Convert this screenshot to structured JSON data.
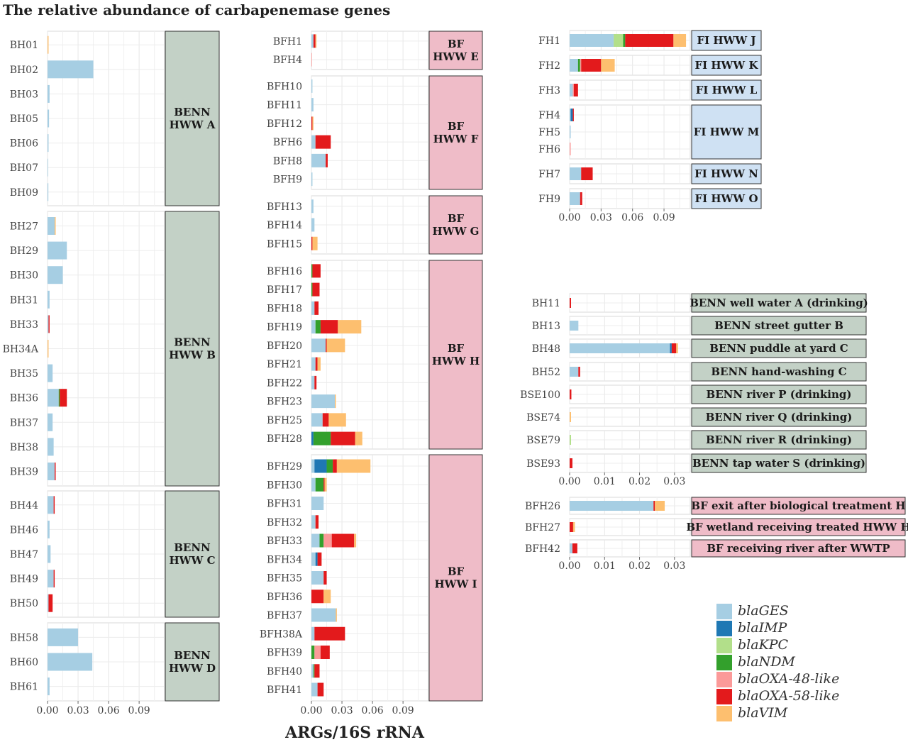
{
  "title": "The relative abundance of carbapenemase genes",
  "x_axis_title": "ARGs/16S rRNA",
  "genes": [
    "blaGES",
    "blaIMP",
    "blaKPC",
    "blaNDM",
    "blaOXA-48-like",
    "blaOXA-58-like",
    "blaVIM"
  ],
  "colors": {
    "blaGES": "#a6cee3",
    "blaIMP": "#1f78b4",
    "blaKPC": "#b2df8a",
    "blaNDM": "#33a02c",
    "blaOXA-48-like": "#fb9a99",
    "blaOXA-58-like": "#e31a1c",
    "blaVIM": "#fdbf6f"
  },
  "facet_colors": {
    "benn": "#c3d1c6",
    "bf": "#efbcc8",
    "fi": "#cfe1f3"
  },
  "legend": {
    "position": "bottom-right",
    "entries": [
      "blaGES",
      "blaIMP",
      "blaKPC",
      "blaNDM",
      "blaOXA-48-like",
      "blaOXA-58-like",
      "blaVIM"
    ]
  },
  "chart_data": [
    {
      "type": "bar",
      "orientation": "horizontal",
      "stacked": true,
      "xlim": [
        0,
        0.115
      ],
      "x_ticks": [
        "0.00",
        "0.03",
        "0.06",
        "0.09"
      ],
      "grid": true,
      "panels": [
        {
          "strip": [
            "BENN",
            "HWW A"
          ],
          "theme": "benn",
          "rows": [
            {
              "label": "BH01",
              "values": {
                "blaVIM": 0.001
              }
            },
            {
              "label": "BH02",
              "values": {
                "blaGES": 0.045
              }
            },
            {
              "label": "BH03",
              "values": {
                "blaGES": 0.002
              }
            },
            {
              "label": "BH05",
              "values": {
                "blaGES": 0.0015
              }
            },
            {
              "label": "BH06",
              "values": {
                "blaGES": 0.001
              }
            },
            {
              "label": "BH07",
              "values": {
                "blaGES": 0.0005
              }
            },
            {
              "label": "BH09",
              "values": {
                "blaGES": 0.0008
              }
            }
          ]
        },
        {
          "strip": [
            "BENN",
            "HWW B"
          ],
          "theme": "benn",
          "rows": [
            {
              "label": "BH27",
              "values": {
                "blaVIM": 0.001,
                "blaGES": 0.007
              }
            },
            {
              "label": "BH29",
              "values": {
                "blaGES": 0.019
              }
            },
            {
              "label": "BH30",
              "values": {
                "blaGES": 0.015
              }
            },
            {
              "label": "BH31",
              "values": {
                "blaGES": 0.002
              }
            },
            {
              "label": "BH33",
              "values": {
                "blaOXA-58-like": 0.001,
                "blaGES": 0.001
              }
            },
            {
              "label": "BH34A",
              "values": {
                "blaVIM": 0.001
              }
            },
            {
              "label": "BH35",
              "values": {
                "blaGES": 0.005
              }
            },
            {
              "label": "BH36",
              "values": {
                "blaOXA-58-like": 0.007,
                "blaNDM": 0.001,
                "blaGES": 0.011
              }
            },
            {
              "label": "BH37",
              "values": {
                "blaGES": 0.005
              }
            },
            {
              "label": "BH38",
              "values": {
                "blaGES": 0.006
              }
            },
            {
              "label": "BH39",
              "values": {
                "blaOXA-58-like": 0.001,
                "blaGES": 0.007
              }
            }
          ]
        },
        {
          "strip": [
            "BENN",
            "HWW C"
          ],
          "theme": "benn",
          "rows": [
            {
              "label": "BH44",
              "values": {
                "blaOXA-58-like": 0.001,
                "blaGES": 0.006
              }
            },
            {
              "label": "BH46",
              "values": {
                "blaGES": 0.002
              }
            },
            {
              "label": "BH47",
              "values": {
                "blaGES": 0.003
              }
            },
            {
              "label": "BH49",
              "values": {
                "blaOXA-58-like": 0.001,
                "blaGES": 0.006
              }
            },
            {
              "label": "BH50",
              "values": {
                "blaOXA-58-like": 0.004,
                "blaGES": 0.001
              }
            }
          ]
        },
        {
          "strip": [
            "BENN",
            "HWW D"
          ],
          "theme": "benn",
          "rows": [
            {
              "label": "BH58",
              "values": {
                "blaGES": 0.03
              }
            },
            {
              "label": "BH60",
              "values": {
                "blaGES": 0.044
              }
            },
            {
              "label": "BH61",
              "values": {
                "blaGES": 0.002
              }
            }
          ]
        }
      ]
    },
    {
      "type": "bar",
      "orientation": "horizontal",
      "stacked": true,
      "xlim": [
        0,
        0.115
      ],
      "x_ticks": [
        "0.00",
        "0.03",
        "0.06",
        "0.09"
      ],
      "grid": true,
      "panels": [
        {
          "strip": [
            "BF",
            "HWW E"
          ],
          "theme": "bf",
          "rows": [
            {
              "label": "BFH1",
              "values": {
                "blaVIM": 0.001,
                "blaOXA-58-like": 0.002,
                "blaGES": 0.002
              }
            },
            {
              "label": "BFH4",
              "values": {
                "blaOXA-48-like": 0.0005
              }
            }
          ]
        },
        {
          "strip": [
            "BF",
            "HWW F"
          ],
          "theme": "bf",
          "rows": [
            {
              "label": "BFH10",
              "values": {
                "blaGES": 0.001
              }
            },
            {
              "label": "BFH11",
              "values": {
                "blaGES": 0.002
              }
            },
            {
              "label": "BFH12",
              "values": {
                "blaVIM": 0.001,
                "blaOXA-58-like": 0.001
              }
            },
            {
              "label": "BFH6",
              "values": {
                "blaOXA-58-like": 0.015,
                "blaGES": 0.004
              }
            },
            {
              "label": "BFH8",
              "values": {
                "blaOXA-58-like": 0.002,
                "blaGES": 0.014
              }
            },
            {
              "label": "BFH9",
              "values": {
                "blaGES": 0.001
              }
            }
          ]
        },
        {
          "strip": [
            "BF",
            "HWW G"
          ],
          "theme": "bf",
          "rows": [
            {
              "label": "BFH13",
              "values": {
                "blaGES": 0.002
              }
            },
            {
              "label": "BFH14",
              "values": {
                "blaGES": 0.003
              }
            },
            {
              "label": "BFH15",
              "values": {
                "blaVIM": 0.005,
                "blaOXA-58-like": 0.001
              }
            }
          ]
        },
        {
          "strip": [
            "BF",
            "HWW H"
          ],
          "theme": "bf",
          "rows": [
            {
              "label": "BFH16",
              "values": {
                "blaOXA-58-like": 0.008,
                "blaNDM": 0.001
              }
            },
            {
              "label": "BFH17",
              "values": {
                "blaOXA-58-like": 0.007,
                "blaNDM": 0.001
              }
            },
            {
              "label": "BFH18",
              "values": {
                "blaOXA-58-like": 0.004,
                "blaGES": 0.003
              }
            },
            {
              "label": "BFH19",
              "values": {
                "blaVIM": 0.023,
                "blaOXA-58-like": 0.017,
                "blaNDM": 0.005,
                "blaGES": 0.004
              }
            },
            {
              "label": "BFH20",
              "values": {
                "blaVIM": 0.018,
                "blaOXA-58-like": 0.001,
                "blaGES": 0.014
              }
            },
            {
              "label": "BFH21",
              "values": {
                "blaVIM": 0.003,
                "blaOXA-58-like": 0.002,
                "blaGES": 0.004
              }
            },
            {
              "label": "BFH22",
              "values": {
                "blaOXA-58-like": 0.002,
                "blaGES": 0.003
              }
            },
            {
              "label": "BFH23",
              "values": {
                "blaVIM": 0.001,
                "blaGES": 0.023
              }
            },
            {
              "label": "BFH25",
              "values": {
                "blaVIM": 0.017,
                "blaOXA-58-like": 0.006,
                "blaGES": 0.011
              }
            },
            {
              "label": "BFH28",
              "values": {
                "blaVIM": 0.007,
                "blaOXA-58-like": 0.024,
                "blaNDM": 0.017,
                "blaIMP": 0.002
              }
            }
          ]
        },
        {
          "strip": [
            "BF",
            "HWW I"
          ],
          "theme": "bf",
          "rows": [
            {
              "label": "BFH29",
              "values": {
                "blaVIM": 0.033,
                "blaOXA-58-like": 0.004,
                "blaNDM": 0.006,
                "blaIMP": 0.012,
                "blaGES": 0.003
              }
            },
            {
              "label": "BFH30",
              "values": {
                "blaVIM": 0.002,
                "blaOXA-58-like": 0.001,
                "blaNDM": 0.008,
                "blaGES": 0.004
              }
            },
            {
              "label": "BFH31",
              "values": {
                "blaGES": 0.012
              }
            },
            {
              "label": "BFH32",
              "values": {
                "blaOXA-58-like": 0.003,
                "blaGES": 0.004
              }
            },
            {
              "label": "BFH33",
              "values": {
                "blaVIM": 0.002,
                "blaOXA-58-like": 0.022,
                "blaOXA-48-like": 0.008,
                "blaNDM": 0.004,
                "blaGES": 0.008
              }
            },
            {
              "label": "BFH34",
              "values": {
                "blaOXA-58-like": 0.004,
                "blaIMP": 0.002,
                "blaGES": 0.004
              }
            },
            {
              "label": "BFH35",
              "values": {
                "blaOXA-58-like": 0.003,
                "blaGES": 0.012
              }
            },
            {
              "label": "BFH36",
              "values": {
                "blaVIM": 0.007,
                "blaOXA-58-like": 0.012
              }
            },
            {
              "label": "BFH37",
              "values": {
                "blaVIM": 0.001,
                "blaGES": 0.024
              }
            },
            {
              "label": "BFH38A",
              "values": {
                "blaOXA-58-like": 0.03,
                "blaGES": 0.003
              }
            },
            {
              "label": "BFH39",
              "values": {
                "blaOXA-58-like": 0.009,
                "blaOXA-48-like": 0.006,
                "blaNDM": 0.003
              }
            },
            {
              "label": "BFH40",
              "values": {
                "blaOXA-58-like": 0.005,
                "blaNDM": 0.001,
                "blaGES": 0.002
              }
            },
            {
              "label": "BFH41",
              "values": {
                "blaOXA-58-like": 0.006,
                "blaGES": 0.006
              }
            }
          ]
        }
      ]
    },
    {
      "type": "bar",
      "orientation": "horizontal",
      "stacked": true,
      "xlim": [
        0,
        0.115
      ],
      "x_ticks": [
        "0.00",
        "0.03",
        "0.06",
        "0.09"
      ],
      "grid": true,
      "panels": [
        {
          "strip": [
            "FI HWW J"
          ],
          "theme": "fi",
          "rows": [
            {
              "label": "FH1",
              "values": {
                "blaVIM": 0.012,
                "blaOXA-58-like": 0.046,
                "blaNDM": 0.002,
                "blaKPC": 0.009,
                "blaGES": 0.042
              }
            }
          ]
        },
        {
          "strip": [
            "FI HWW K"
          ],
          "theme": "fi",
          "rows": [
            {
              "label": "FH2",
              "values": {
                "blaVIM": 0.013,
                "blaOXA-58-like": 0.019,
                "blaNDM": 0.002,
                "blaOXA-48-like": 0.001,
                "blaGES": 0.008
              }
            }
          ]
        },
        {
          "strip": [
            "FI HWW L"
          ],
          "theme": "fi",
          "rows": [
            {
              "label": "FH3",
              "values": {
                "blaOXA-58-like": 0.004,
                "blaOXA-48-like": 0.001,
                "blaGES": 0.003
              }
            }
          ]
        },
        {
          "strip": [
            "FI HWW M"
          ],
          "theme": "fi",
          "rows": [
            {
              "label": "FH4",
              "values": {
                "blaOXA-58-like": 0.001,
                "blaIMP": 0.002,
                "blaGES": 0.001
              }
            },
            {
              "label": "FH5",
              "values": {
                "blaGES": 0.001
              }
            },
            {
              "label": "FH6",
              "values": {
                "blaOXA-48-like": 0.001
              }
            }
          ]
        },
        {
          "strip": [
            "FI HWW N"
          ],
          "theme": "fi",
          "rows": [
            {
              "label": "FH7",
              "values": {
                "blaOXA-58-like": 0.011,
                "blaGES": 0.011
              }
            }
          ]
        },
        {
          "strip": [
            "FI HWW O"
          ],
          "theme": "fi",
          "rows": [
            {
              "label": "FH9",
              "values": {
                "blaOXA-58-like": 0.002,
                "blaGES": 0.01
              }
            }
          ]
        }
      ]
    },
    {
      "type": "bar",
      "orientation": "horizontal",
      "stacked": true,
      "xlim": [
        0,
        0.0345
      ],
      "x_ticks": [
        "0.00",
        "0.01",
        "0.02",
        "0.03"
      ],
      "grid": true,
      "panels": [
        {
          "strip": [
            "BENN well water A (drinking)"
          ],
          "theme": "benn",
          "rows": [
            {
              "label": "BH11",
              "values": {
                "blaOXA-58-like": 0.0004
              }
            }
          ]
        },
        {
          "strip": [
            "BENN street gutter B"
          ],
          "theme": "benn",
          "rows": [
            {
              "label": "BH13",
              "values": {
                "blaGES": 0.0025
              }
            }
          ]
        },
        {
          "strip": [
            "BENN puddle at yard C"
          ],
          "theme": "benn",
          "rows": [
            {
              "label": "BH48",
              "values": {
                "blaVIM": 0.0005,
                "blaOXA-58-like": 0.0013,
                "blaIMP": 0.0005,
                "blaGES": 0.0287
              }
            }
          ]
        },
        {
          "strip": [
            "BENN hand-washing C"
          ],
          "theme": "benn",
          "rows": [
            {
              "label": "BH52",
              "values": {
                "blaOXA-58-like": 0.0005,
                "blaGES": 0.0025
              }
            }
          ]
        },
        {
          "strip": [
            "BENN river P (drinking)"
          ],
          "theme": "benn",
          "rows": [
            {
              "label": "BSE100",
              "values": {
                "blaOXA-58-like": 0.0005
              }
            }
          ]
        },
        {
          "strip": [
            "BENN river Q (drinking)"
          ],
          "theme": "benn",
          "rows": [
            {
              "label": "BSE74",
              "values": {
                "blaVIM": 0.0004
              }
            }
          ]
        },
        {
          "strip": [
            "BENN river R (drinking)"
          ],
          "theme": "benn",
          "rows": [
            {
              "label": "BSE79",
              "values": {
                "blaKPC": 0.0004
              }
            }
          ]
        },
        {
          "strip": [
            "BENN tap water S (drinking)"
          ],
          "theme": "benn",
          "rows": [
            {
              "label": "BSE93",
              "values": {
                "blaOXA-58-like": 0.0008
              }
            }
          ]
        }
      ]
    },
    {
      "type": "bar",
      "orientation": "horizontal",
      "stacked": true,
      "xlim": [
        0,
        0.0345
      ],
      "x_ticks": [
        "0.00",
        "0.01",
        "0.02",
        "0.03"
      ],
      "grid": true,
      "panels": [
        {
          "strip": [
            "BF exit after biological treatment H"
          ],
          "theme": "bf",
          "rows": [
            {
              "label": "BFH26",
              "values": {
                "blaVIM": 0.0028,
                "blaOXA-58-like": 0.0004,
                "blaGES": 0.024
              }
            }
          ]
        },
        {
          "strip": [
            "BF wetland receiving treated HWW H"
          ],
          "theme": "bf",
          "rows": [
            {
              "label": "BFH27",
              "values": {
                "blaVIM": 0.0005,
                "blaOXA-58-like": 0.001
              }
            }
          ]
        },
        {
          "strip": [
            "BF receiving river after WWTP"
          ],
          "theme": "bf",
          "rows": [
            {
              "label": "BFH42",
              "values": {
                "blaOXA-58-like": 0.0014,
                "blaGES": 0.0008
              }
            }
          ]
        }
      ]
    }
  ]
}
